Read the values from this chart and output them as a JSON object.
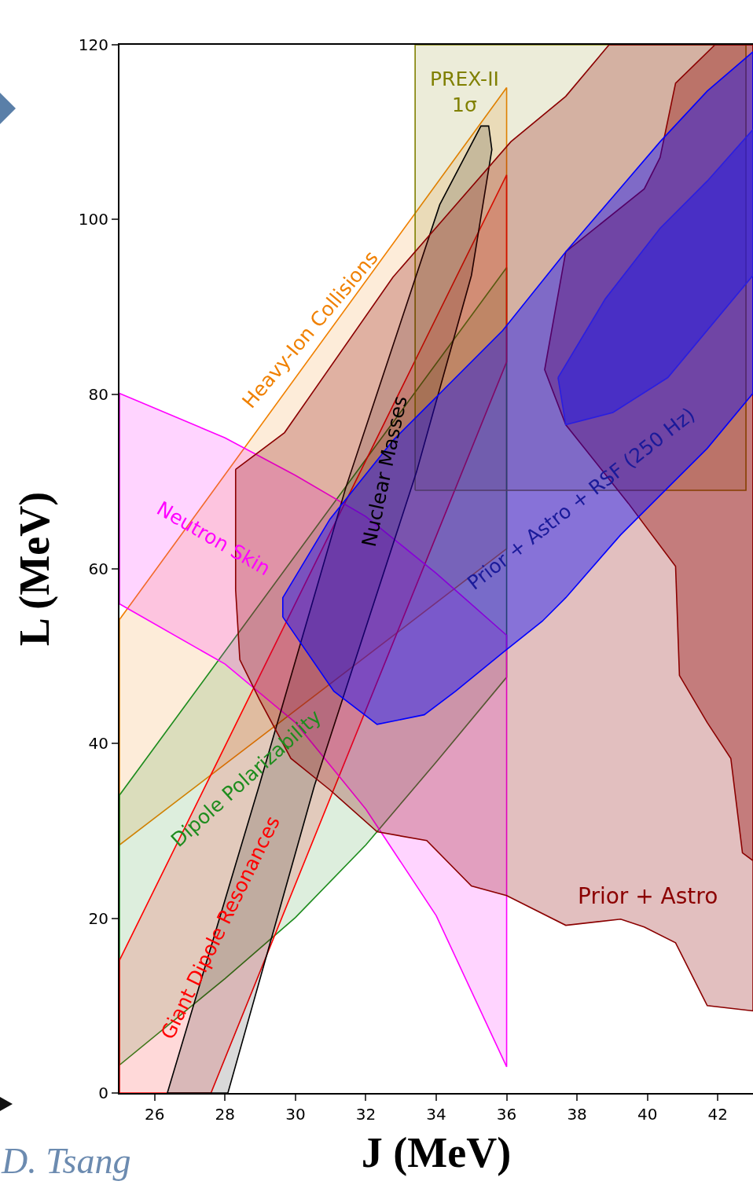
{
  "chart_data": {
    "type": "area",
    "xlabel": "J (MeV)",
    "ylabel": "L (MeV)",
    "xlim": [
      25,
      43
    ],
    "ylim": [
      0,
      120
    ],
    "xticks": [
      26,
      28,
      30,
      32,
      34,
      36,
      38,
      40,
      42
    ],
    "yticks": [
      0,
      20,
      40,
      60,
      80,
      100,
      120
    ],
    "grid": false,
    "legend": false,
    "series": [
      {
        "name": "Heavy-Ion Collisions",
        "color": "#f08000",
        "x": [
          25,
          36,
          36,
          25,
          25
        ],
        "values": [
          28.4,
          62.3,
          115.1,
          54.2,
          28.4
        ]
      },
      {
        "name": "Dipole Polarizability",
        "color": "#1e8c1e",
        "x": [
          25,
          28,
          30,
          32,
          34,
          36,
          36,
          25,
          25
        ],
        "values": [
          3.2,
          13.1,
          20.1,
          28.4,
          37.9,
          47.6,
          94.5,
          34.1,
          3.2
        ]
      },
      {
        "name": "Giant Dipole Resonances",
        "color": "#ff0000",
        "x": [
          25,
          27.6,
          36,
          36,
          25,
          25
        ],
        "values": [
          0,
          0,
          83.7,
          105.1,
          15.2,
          0
        ]
      },
      {
        "name": "Neutron Skin",
        "color": "#ff00ff",
        "x": [
          25,
          28,
          30,
          32,
          34,
          36,
          36,
          34,
          32,
          30,
          28,
          25,
          25
        ],
        "values": [
          56.0,
          49.1,
          42.4,
          32.5,
          20.3,
          3.0,
          52.4,
          59.5,
          66.0,
          70.7,
          75.0,
          80.1,
          56.0
        ]
      },
      {
        "name": "PREX-II\n1σ",
        "color": "#808000",
        "x": [
          33.4,
          42.8,
          42.8,
          33.4,
          33.4
        ],
        "values": [
          69,
          69,
          120,
          120,
          69
        ]
      },
      {
        "name": "Nuclear Masses",
        "color": "#000000",
        "x": [
          26.36,
          28.08,
          30.54,
          33.44,
          35.0,
          35.58,
          35.49,
          35.27,
          34.1,
          31.43,
          28.97,
          26.36
        ],
        "values": [
          0,
          0,
          35.2,
          71.1,
          93.6,
          108.0,
          110.7,
          110.7,
          101.7,
          69.3,
          35.2,
          0
        ]
      },
      {
        "name": "Prior + Astro",
        "color": "#8b0000",
        "x": [
          28.3,
          29.69,
          32.77,
          36.12,
          37.68,
          38.91,
          43,
          43,
          41.7,
          40.8,
          39.91,
          39.24,
          37.68,
          36.0,
          35.0,
          33.73,
          32.32,
          30.98,
          29.87,
          28.97,
          28.42,
          28.3,
          28.3
        ],
        "values": [
          71.4,
          75.6,
          93.4,
          108.9,
          114.1,
          120,
          120,
          9.4,
          10.0,
          17.2,
          19.0,
          19.9,
          19.2,
          22.6,
          23.7,
          28.9,
          29.9,
          34.7,
          38.3,
          45.1,
          49.6,
          57.6,
          71.4
        ]
      },
      {
        "color": "#8b0000",
        "x": [
          41.92,
          40.8,
          40.36,
          39.91,
          37.68,
          37.08,
          37.68,
          39.46,
          40.8,
          40.91,
          41.7,
          42.37,
          42.7,
          43,
          43,
          41.92
        ],
        "values": [
          120,
          115.6,
          107.1,
          103.5,
          96.3,
          82.8,
          76.5,
          67.5,
          60.3,
          47.8,
          42.4,
          38.3,
          27.5,
          26.6,
          120,
          120
        ]
      },
      {
        "name": "Prior + Astro + RSF (250 Hz)",
        "color": "#0000ff",
        "x": [
          29.64,
          31.09,
          32.32,
          33.66,
          34.55,
          35.89,
          37.01,
          37.68,
          39.24,
          40.58,
          41.7,
          43,
          43,
          41.7,
          40.36,
          39.02,
          37.68,
          35.89,
          34.33,
          32.77,
          30.98,
          29.64,
          29.64
        ],
        "values": [
          54.5,
          46.0,
          42.2,
          43.3,
          46.0,
          50.4,
          54.0,
          56.7,
          63.9,
          69.3,
          73.8,
          80.1,
          119.2,
          114.7,
          108.9,
          102.6,
          96.3,
          87.3,
          81.0,
          74.7,
          65.7,
          56.7,
          54.5
        ]
      },
      {
        "color": "#2a1ee0",
        "x": [
          37.46,
          37.68,
          39.02,
          40.58,
          43,
          43,
          41.7,
          40.36,
          38.8,
          37.46
        ],
        "values": [
          81.9,
          76.5,
          77.9,
          81.9,
          93.6,
          110.3,
          104.4,
          99.0,
          90.9,
          81.9
        ]
      }
    ],
    "annotations": [
      "D. Tsang"
    ]
  }
}
